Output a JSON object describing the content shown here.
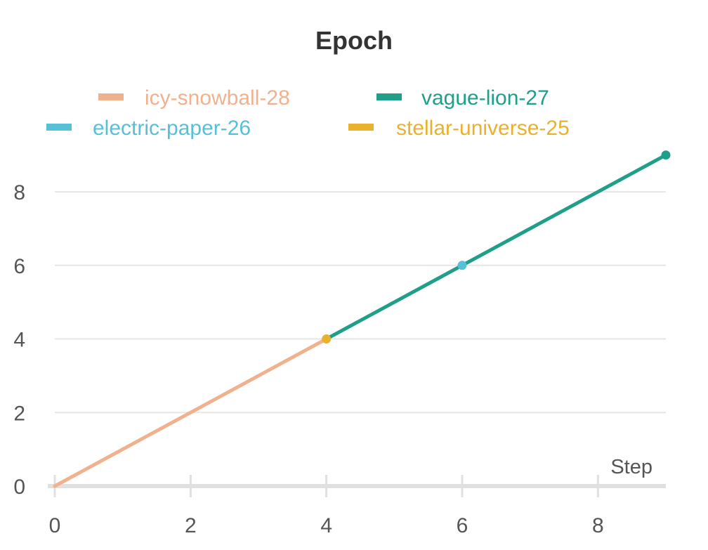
{
  "chart_data": {
    "type": "line",
    "title": "Epoch",
    "xlabel": "Step",
    "ylabel": "",
    "xlim": [
      0,
      9
    ],
    "ylim": [
      0,
      9.3
    ],
    "x_ticks": [
      0,
      2,
      4,
      6,
      8
    ],
    "y_ticks": [
      0,
      2,
      4,
      6,
      8
    ],
    "grid": true,
    "legend_position": "top",
    "series": [
      {
        "name": "icy-snowball-28",
        "color": "#f0b28e",
        "x": [
          0,
          1,
          2,
          3,
          4
        ],
        "y": [
          0,
          1,
          2,
          3,
          4
        ]
      },
      {
        "name": "vague-lion-27",
        "color": "#1f9e89",
        "x": [
          4,
          5,
          6,
          7,
          8,
          9
        ],
        "y": [
          4,
          5,
          6,
          7,
          8,
          9
        ]
      },
      {
        "name": "electric-paper-26",
        "color": "#55c0d6",
        "x": [
          6
        ],
        "y": [
          6
        ]
      },
      {
        "name": "stellar-universe-25",
        "color": "#e8b22e",
        "x": [
          4
        ],
        "y": [
          4
        ]
      }
    ]
  }
}
